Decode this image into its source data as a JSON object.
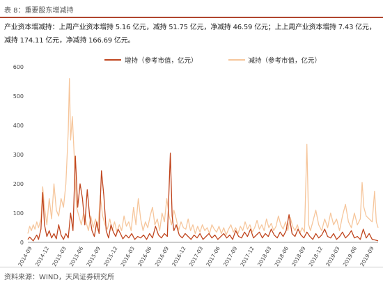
{
  "header": {
    "caption": "表 8：重要股东增减持",
    "summary": "产业资本增减持：上周产业资本增持 5.16 亿元，减持 51.75 亿元，净减持 46.59 亿元；上上周产业资本增持 7.43 亿元，减持 174.11 亿元，净减持 166.69 亿元。"
  },
  "footer": {
    "source": "资料来源：WIND，天风证券研究所"
  },
  "chart_data": {
    "type": "line",
    "title": "",
    "xlabel": "",
    "ylabel": "",
    "ylim": [
      0,
      600
    ],
    "yticks": [
      "0",
      "100",
      "200",
      "300",
      "400",
      "500",
      "600"
    ],
    "categories": [
      "2014-09",
      "2014-12",
      "2015-03",
      "2015-06",
      "2015-09",
      "2015-12",
      "2016-03",
      "2016-06",
      "2016-09",
      "2016-12",
      "2017-03",
      "2017-06",
      "2017-09",
      "2017-12",
      "2018-03",
      "2018-06",
      "2018-09",
      "2018-12",
      "2019-03",
      "2019-06",
      "2019-09"
    ],
    "grid": false,
    "legend": "top-center",
    "series": [
      {
        "name": "增持（参考市值，亿元）",
        "color": "#c0461f",
        "values": [
          [
            0,
            10
          ],
          [
            0.3,
            18
          ],
          [
            0.6,
            12
          ],
          [
            0.9,
            5
          ],
          [
            1.2,
            15
          ],
          [
            1.5,
            25
          ],
          [
            1.8,
            10
          ],
          [
            2.2,
            45
          ],
          [
            2.5,
            170
          ],
          [
            2.8,
            60
          ],
          [
            3.2,
            20
          ],
          [
            3.6,
            40
          ],
          [
            4,
            15
          ],
          [
            4.4,
            30
          ],
          [
            4.8,
            12
          ],
          [
            5.2,
            60
          ],
          [
            5.6,
            25
          ],
          [
            6,
            10
          ],
          [
            6.4,
            30
          ],
          [
            6.8,
            15
          ],
          [
            7.2,
            100
          ],
          [
            7.6,
            40
          ],
          [
            8,
            295
          ],
          [
            8.4,
            120
          ],
          [
            8.8,
            200
          ],
          [
            9.2,
            150
          ],
          [
            9.6,
            60
          ],
          [
            10,
            180
          ],
          [
            10.4,
            90
          ],
          [
            10.8,
            40
          ],
          [
            11.2,
            20
          ],
          [
            11.6,
            70
          ],
          [
            12,
            30
          ],
          [
            12.4,
            245
          ],
          [
            12.8,
            160
          ],
          [
            13.2,
            40
          ],
          [
            13.6,
            15
          ],
          [
            14,
            60
          ],
          [
            14.4,
            35
          ],
          [
            14.8,
            20
          ],
          [
            15.2,
            45
          ],
          [
            15.6,
            30
          ],
          [
            16,
            12
          ],
          [
            16.5,
            25
          ],
          [
            17,
            15
          ],
          [
            17.5,
            30
          ],
          [
            18,
            10
          ],
          [
            18.5,
            20
          ],
          [
            19,
            15
          ],
          [
            19.5,
            25
          ],
          [
            20,
            10
          ],
          [
            20.5,
            30
          ],
          [
            21,
            15
          ],
          [
            21.5,
            55
          ],
          [
            22,
            25
          ],
          [
            22.5,
            15
          ],
          [
            23,
            30
          ],
          [
            23.5,
            20
          ],
          [
            24,
            305
          ],
          [
            24.3,
            90
          ],
          [
            24.6,
            40
          ],
          [
            25,
            60
          ],
          [
            25.5,
            25
          ],
          [
            26,
            15
          ],
          [
            26.5,
            30
          ],
          [
            27,
            20
          ],
          [
            27.5,
            10
          ],
          [
            28,
            25
          ],
          [
            28.5,
            15
          ],
          [
            29,
            30
          ],
          [
            29.5,
            10
          ],
          [
            30,
            20
          ],
          [
            30.5,
            30
          ],
          [
            31,
            15
          ],
          [
            31.5,
            25
          ],
          [
            32,
            10
          ],
          [
            32.5,
            20
          ],
          [
            33,
            30
          ],
          [
            33.5,
            15
          ],
          [
            34,
            25
          ],
          [
            34.5,
            10
          ],
          [
            35,
            40
          ],
          [
            35.5,
            20
          ],
          [
            36,
            15
          ],
          [
            36.5,
            35
          ],
          [
            37,
            20
          ],
          [
            37.5,
            45
          ],
          [
            38,
            15
          ],
          [
            38.5,
            25
          ],
          [
            39,
            35
          ],
          [
            39.5,
            15
          ],
          [
            40,
            30
          ],
          [
            40.5,
            20
          ],
          [
            41,
            45
          ],
          [
            41.5,
            25
          ],
          [
            42,
            15
          ],
          [
            42.5,
            35
          ],
          [
            43,
            20
          ],
          [
            43.5,
            40
          ],
          [
            44,
            95
          ],
          [
            44.5,
            30
          ],
          [
            45,
            20
          ],
          [
            45.5,
            45
          ],
          [
            46,
            25
          ],
          [
            46.5,
            15
          ],
          [
            47,
            35
          ],
          [
            47.5,
            20
          ],
          [
            48,
            10
          ],
          [
            48.5,
            30
          ],
          [
            49,
            15
          ],
          [
            49.5,
            25
          ],
          [
            50,
            45
          ],
          [
            50.5,
            20
          ],
          [
            51,
            15
          ],
          [
            51.5,
            30
          ],
          [
            52,
            10
          ],
          [
            52.5,
            20
          ],
          [
            53,
            35
          ],
          [
            53.5,
            15
          ],
          [
            54,
            25
          ],
          [
            54.5,
            40
          ],
          [
            55,
            15
          ],
          [
            55.5,
            20
          ],
          [
            56,
            10
          ],
          [
            56.5,
            45
          ],
          [
            57,
            15
          ],
          [
            57.5,
            30
          ],
          [
            58,
            10
          ],
          [
            58.5,
            8
          ],
          [
            59,
            5
          ]
        ]
      },
      {
        "name": "减持（参考市值，亿元）",
        "color": "#f6c69c",
        "values": [
          [
            0,
            30
          ],
          [
            0.3,
            55
          ],
          [
            0.6,
            40
          ],
          [
            0.9,
            60
          ],
          [
            1.2,
            45
          ],
          [
            1.5,
            70
          ],
          [
            1.8,
            50
          ],
          [
            2.2,
            80
          ],
          [
            2.5,
            190
          ],
          [
            2.8,
            120
          ],
          [
            3.2,
            60
          ],
          [
            3.6,
            150
          ],
          [
            4,
            80
          ],
          [
            4.4,
            200
          ],
          [
            4.8,
            110
          ],
          [
            5.2,
            90
          ],
          [
            5.6,
            150
          ],
          [
            6,
            120
          ],
          [
            6.4,
            200
          ],
          [
            6.8,
            380
          ],
          [
            7,
            560
          ],
          [
            7.2,
            350
          ],
          [
            7.5,
            430
          ],
          [
            7.8,
            300
          ],
          [
            8.2,
            120
          ],
          [
            8.6,
            90
          ],
          [
            9,
            60
          ],
          [
            9.4,
            100
          ],
          [
            9.8,
            70
          ],
          [
            10.2,
            40
          ],
          [
            10.6,
            90
          ],
          [
            11,
            50
          ],
          [
            11.4,
            80
          ],
          [
            11.8,
            40
          ],
          [
            12.2,
            160
          ],
          [
            12.6,
            90
          ],
          [
            13,
            60
          ],
          [
            13.4,
            45
          ],
          [
            13.8,
            80
          ],
          [
            14.2,
            40
          ],
          [
            14.6,
            70
          ],
          [
            15,
            35
          ],
          [
            15.4,
            60
          ],
          [
            15.8,
            40
          ],
          [
            16.2,
            90
          ],
          [
            16.6,
            55
          ],
          [
            17,
            70
          ],
          [
            17.4,
            40
          ],
          [
            17.8,
            120
          ],
          [
            18.2,
            60
          ],
          [
            18.6,
            150
          ],
          [
            19,
            80
          ],
          [
            19.4,
            40
          ],
          [
            19.8,
            70
          ],
          [
            20.2,
            50
          ],
          [
            20.6,
            90
          ],
          [
            21,
            120
          ],
          [
            21.4,
            60
          ],
          [
            21.8,
            80
          ],
          [
            22.2,
            40
          ],
          [
            22.6,
            100
          ],
          [
            23,
            70
          ],
          [
            23.4,
            150
          ],
          [
            23.8,
            90
          ],
          [
            24.2,
            60
          ],
          [
            24.6,
            110
          ],
          [
            25,
            80
          ],
          [
            25.4,
            40
          ],
          [
            25.8,
            70
          ],
          [
            26.2,
            50
          ],
          [
            26.6,
            45
          ],
          [
            27,
            80
          ],
          [
            27.4,
            40
          ],
          [
            27.8,
            60
          ],
          [
            28.2,
            30
          ],
          [
            28.6,
            55
          ],
          [
            29,
            35
          ],
          [
            29.4,
            60
          ],
          [
            29.8,
            40
          ],
          [
            30.2,
            50
          ],
          [
            30.6,
            30
          ],
          [
            31,
            60
          ],
          [
            31.4,
            45
          ],
          [
            31.8,
            35
          ],
          [
            32.2,
            55
          ],
          [
            32.6,
            30
          ],
          [
            33,
            50
          ],
          [
            33.4,
            25
          ],
          [
            33.8,
            45
          ],
          [
            34.2,
            60
          ],
          [
            34.6,
            35
          ],
          [
            35,
            50
          ],
          [
            35.4,
            30
          ],
          [
            35.8,
            55
          ],
          [
            36.2,
            40
          ],
          [
            36.6,
            70
          ],
          [
            37,
            45
          ],
          [
            37.4,
            60
          ],
          [
            37.8,
            35
          ],
          [
            38.2,
            50
          ],
          [
            38.6,
            75
          ],
          [
            39,
            45
          ],
          [
            39.4,
            60
          ],
          [
            39.8,
            40
          ],
          [
            40.2,
            80
          ],
          [
            40.6,
            50
          ],
          [
            41,
            65
          ],
          [
            41.4,
            40
          ],
          [
            41.8,
            55
          ],
          [
            42.2,
            90
          ],
          [
            42.6,
            60
          ],
          [
            43,
            45
          ],
          [
            43.4,
            70
          ],
          [
            43.8,
            40
          ],
          [
            44.2,
            85
          ],
          [
            44.6,
            55
          ],
          [
            45,
            40
          ],
          [
            45.4,
            60
          ],
          [
            45.8,
            30
          ],
          [
            46.2,
            50
          ],
          [
            46.6,
            35
          ],
          [
            47,
            335
          ],
          [
            47.3,
            60
          ],
          [
            47.6,
            40
          ],
          [
            48,
            70
          ],
          [
            48.5,
            110
          ],
          [
            49,
            60
          ],
          [
            49.5,
            40
          ],
          [
            50,
            80
          ],
          [
            50.5,
            50
          ],
          [
            51,
            100
          ],
          [
            51.5,
            60
          ],
          [
            52,
            80
          ],
          [
            52.5,
            40
          ],
          [
            53,
            90
          ],
          [
            53.5,
            130
          ],
          [
            54,
            70
          ],
          [
            54.5,
            50
          ],
          [
            55,
            100
          ],
          [
            55.5,
            60
          ],
          [
            56,
            80
          ],
          [
            56.3,
            205
          ],
          [
            56.6,
            120
          ],
          [
            57,
            90
          ],
          [
            57.5,
            80
          ],
          [
            58,
            70
          ],
          [
            58.4,
            175
          ],
          [
            58.7,
            70
          ],
          [
            59,
            50
          ]
        ]
      }
    ]
  }
}
